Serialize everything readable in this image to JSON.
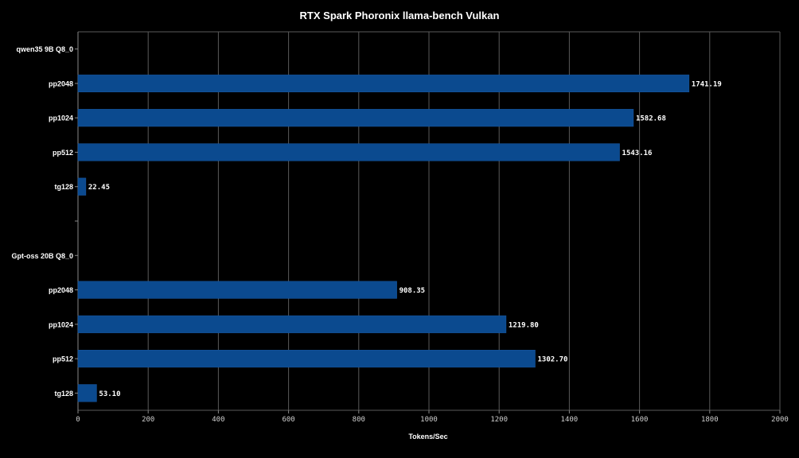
{
  "chart_data": {
    "type": "bar",
    "orientation": "horizontal",
    "title": "RTX Spark Phoronix llama-bench Vulkan",
    "xlabel": "Tokens/Sec",
    "ylabel": "",
    "xlim": [
      0,
      2000
    ],
    "xticks": [
      "0",
      "200",
      "400",
      "600",
      "800",
      "1000",
      "1200",
      "1400",
      "1600",
      "1800",
      "2000"
    ],
    "grid": "vertical",
    "bar_color": "#0b4a8f",
    "background": "#000000",
    "groups": [
      {
        "name": "qwen35 9B Q8_0",
        "items": [
          {
            "label": "pp2048",
            "value": 1741.19,
            "value_label": "1741.19"
          },
          {
            "label": "pp1024",
            "value": 1582.68,
            "value_label": "1582.68"
          },
          {
            "label": "pp512",
            "value": 1543.16,
            "value_label": "1543.16"
          },
          {
            "label": "tg128",
            "value": 22.45,
            "value_label": "22.45"
          }
        ]
      },
      {
        "name": "Gpt-oss 20B Q8_0",
        "items": [
          {
            "label": "pp2048",
            "value": 908.35,
            "value_label": "908.35"
          },
          {
            "label": "pp1024",
            "value": 1219.8,
            "value_label": "1219.80"
          },
          {
            "label": "pp512",
            "value": 1302.7,
            "value_label": "1302.70"
          },
          {
            "label": "tg128",
            "value": 53.1,
            "value_label": "53.10"
          }
        ]
      }
    ]
  }
}
